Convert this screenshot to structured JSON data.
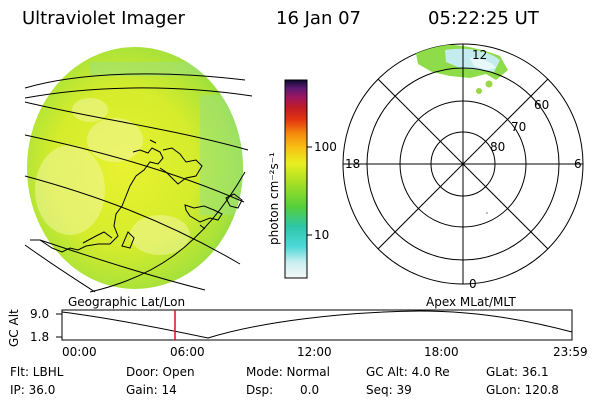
{
  "header": {
    "instrument": "Ultraviolet Imager",
    "date": "16 Jan 07",
    "time": "05:22:25 UT"
  },
  "colorbar": {
    "unit": "photon cm⁻²s⁻¹",
    "ticks": [
      "100",
      "10"
    ],
    "scale": "log"
  },
  "polar": {
    "mlt_labels": {
      "top": "12",
      "left": "18",
      "right": "6",
      "bottom": "0"
    },
    "lat_labels": [
      "60",
      "70",
      "80"
    ]
  },
  "panels": {
    "left_caption": "Geographic Lat/Lon",
    "right_caption": "Apex MLat/MLT"
  },
  "altitude_plot": {
    "ylabel": "GC Alt",
    "yticks": [
      "9.0",
      "1.8"
    ],
    "xticks": [
      "00:00",
      "06:00",
      "12:00",
      "18:00",
      "23:59"
    ],
    "current_time_marker": "05:22"
  },
  "info": {
    "flt": "Flt: LBHL",
    "ip": "IP: 36.0",
    "door": "Door: Open",
    "gain": "Gain: 14",
    "mode": "Mode: Normal",
    "dsp_label": "Dsp:",
    "dsp_value": "0.0",
    "gc_alt": "GC Alt: 4.0 Re",
    "seq": "Seq: 39",
    "glat": "GLat: 36.1",
    "glon": "GLon: 120.8"
  }
}
